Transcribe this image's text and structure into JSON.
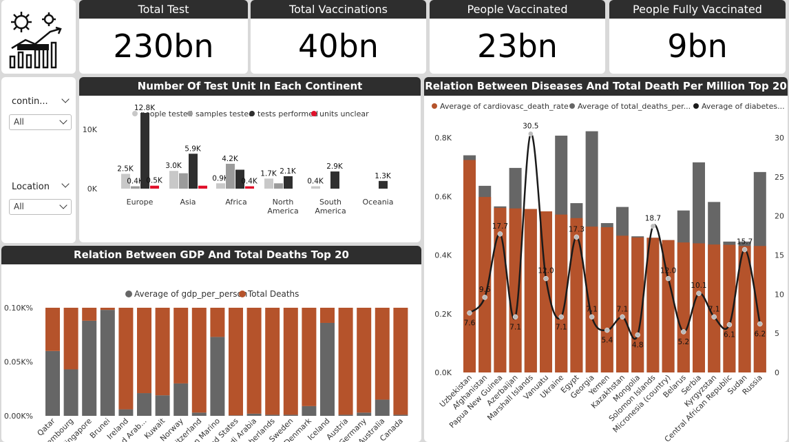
{
  "kpis": [
    {
      "title": "Total Test",
      "value": "230bn"
    },
    {
      "title": "Total Vaccinations",
      "value": "40bn"
    },
    {
      "title": "People Vaccinated",
      "value": "23bn"
    },
    {
      "title": "People Fully Vaccinated",
      "value": "9bn"
    }
  ],
  "slicers": [
    {
      "title": "contin...",
      "value": "All"
    },
    {
      "title": "Location",
      "value": "All"
    }
  ],
  "chart_data": [
    {
      "type": "bar",
      "title": "Number Of Test Unit In Each Continent",
      "categories": [
        "Europe",
        "Asia",
        "Africa",
        "North America",
        "South America",
        "Oceania"
      ],
      "series": [
        {
          "name": "people tested",
          "values": [
            2500,
            3000,
            900,
            1700,
            400,
            null
          ],
          "labels": [
            "2.5K",
            "3.0K",
            "0.9K",
            "1.7K",
            "0.4K",
            ""
          ]
        },
        {
          "name": "samples tested",
          "values": [
            400,
            2600,
            4200,
            900,
            null,
            null
          ],
          "labels": [
            "0.4K",
            "",
            "4.2K",
            "",
            "",
            ""
          ]
        },
        {
          "name": "tests performed",
          "values": [
            12800,
            5900,
            3200,
            2100,
            2900,
            1300
          ],
          "labels": [
            "12.8K",
            "5.9K",
            "",
            "2.1K",
            "2.9K",
            "1.3K"
          ]
        },
        {
          "name": "units unclear",
          "values": [
            500,
            500,
            400,
            null,
            null,
            null
          ],
          "labels": [
            "0.5K",
            "",
            "0.4K",
            "",
            "",
            ""
          ]
        }
      ],
      "yticks": [
        "0K",
        "10K"
      ],
      "ylim": [
        0,
        14000
      ],
      "colors": [
        "#c8c8c8",
        "#9b9b9b",
        "#2f2f2f",
        "#e0102a"
      ],
      "legend": "top"
    },
    {
      "type": "bar",
      "title": "Relation Between GDP And Total Deaths Top 20",
      "categories": [
        "Qatar",
        "Luxembourg",
        "Singapore",
        "Brunei",
        "Ireland",
        "United Arab...",
        "Kuwait",
        "Norway",
        "Switzerland",
        "San Marino",
        "United States",
        "Saudi Arabia",
        "Netherlands",
        "Sweden",
        "Denmark",
        "Iceland",
        "Austria",
        "Germany",
        "Australia",
        "Canada"
      ],
      "series": [
        {
          "name": "Average of gdp_per_person",
          "values": [
            0.06,
            0.043,
            0.088,
            0.098,
            0.006,
            0.021,
            0.019,
            0.03,
            0.003,
            0.073,
            0.0005,
            0.002,
            0.001,
            0.001,
            0.009,
            0.086,
            0.001,
            0.003,
            0.015,
            0.001
          ]
        },
        {
          "name": "Total Deaths",
          "values": [
            0.04,
            0.057,
            0.012,
            0.002,
            0.094,
            0.079,
            0.081,
            0.07,
            0.097,
            0.027,
            0.0995,
            0.098,
            0.099,
            0.099,
            0.091,
            0.014,
            0.099,
            0.097,
            0.085,
            0.099
          ]
        }
      ],
      "yticks": [
        "0.00K%",
        "0.05K%",
        "0.10K%"
      ],
      "ylim": [
        0,
        0.1
      ],
      "colors": [
        "#666666",
        "#b5532b"
      ],
      "legend": "top"
    },
    {
      "type": "bar",
      "title": "Relation Between Diseases And Total Death Per Million Top 20",
      "categories": [
        "Uzbekistan",
        "Afghanistan",
        "Papua New Guinea",
        "Azerbaijan",
        "Marshall Islands",
        "Vanuatu",
        "Ukraine",
        "Egypt",
        "Georgia",
        "Yemen",
        "Kazakhstan",
        "Mongolia",
        "Solomon Islands",
        "Micronesia (country)",
        "Belarus",
        "Serbia",
        "Kyrgyzstan",
        "Central African Republic",
        "Sudan",
        "Russia"
      ],
      "series": [
        {
          "name": "Average of cardiovasc_death_rate",
          "values": [
            724,
            598,
            561,
            559,
            557,
            549,
            538,
            526,
            497,
            495,
            466,
            460,
            459,
            451,
            443,
            440,
            436,
            435,
            431,
            431
          ]
        },
        {
          "name": "Average of total_deaths_per...",
          "values": [
            740,
            636,
            566,
            697,
            557,
            549,
            807,
            577,
            822,
            509,
            564,
            464,
            459,
            451,
            552,
            716,
            581,
            446,
            446,
            683
          ]
        },
        {
          "name": "Average of diabetes...",
          "axis": "right",
          "values": [
            7.6,
            9.6,
            17.7,
            7.1,
            30.5,
            12.0,
            7.1,
            17.3,
            7.1,
            5.4,
            7.1,
            4.8,
            18.7,
            12.0,
            5.2,
            10.1,
            7.1,
            6.1,
            15.7,
            6.2
          ]
        }
      ],
      "yticks_left": [
        "0.0K",
        "0.2K",
        "0.4K",
        "0.6K",
        "0.8K"
      ],
      "yticks_right": [
        "0",
        "5",
        "10",
        "15",
        "20",
        "25",
        "30"
      ],
      "ylim": [
        0,
        880
      ],
      "ylim_right": [
        0,
        31.7
      ],
      "colors": [
        "#b5532b",
        "#666666",
        "#1a1a1a"
      ],
      "legend": "top"
    }
  ]
}
